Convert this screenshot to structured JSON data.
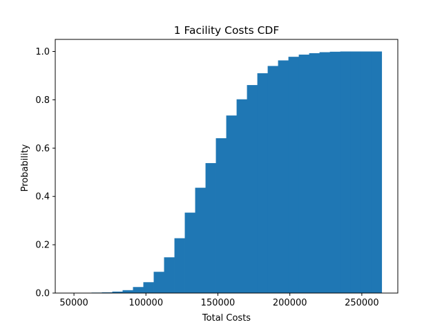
{
  "chart_data": {
    "type": "bar",
    "title": "1 Facility Costs CDF",
    "xlabel": "Total Costs",
    "ylabel": "Probability",
    "xlim": [
      37000,
      275000
    ],
    "ylim": [
      0,
      1.05
    ],
    "xticks": [
      50000,
      100000,
      150000,
      200000,
      250000
    ],
    "xtick_labels": [
      "50000",
      "100000",
      "150000",
      "200000",
      "250000"
    ],
    "yticks": [
      0.0,
      0.2,
      0.4,
      0.6,
      0.8,
      1.0
    ],
    "ytick_labels": [
      "0.0",
      "0.2",
      "0.4",
      "0.6",
      "0.8",
      "1.0"
    ],
    "grid": false,
    "bar_color": "#1f77b4",
    "bins": {
      "edges": [
        55000,
        62200,
        69400,
        76600,
        83800,
        91000,
        98200,
        105400,
        112600,
        119800,
        127000,
        134200,
        141400,
        148600,
        155800,
        163000,
        170200,
        177400,
        184600,
        191800,
        199000,
        206200,
        213400,
        220600,
        227800,
        235000,
        242200,
        249400,
        256600,
        263800
      ],
      "values": [
        0.001,
        0.002,
        0.003,
        0.006,
        0.012,
        0.025,
        0.045,
        0.088,
        0.148,
        0.227,
        0.333,
        0.436,
        0.538,
        0.641,
        0.735,
        0.802,
        0.861,
        0.91,
        0.94,
        0.963,
        0.978,
        0.987,
        0.993,
        0.997,
        0.999,
        1.0,
        1.0,
        1.0,
        1.0
      ]
    }
  }
}
